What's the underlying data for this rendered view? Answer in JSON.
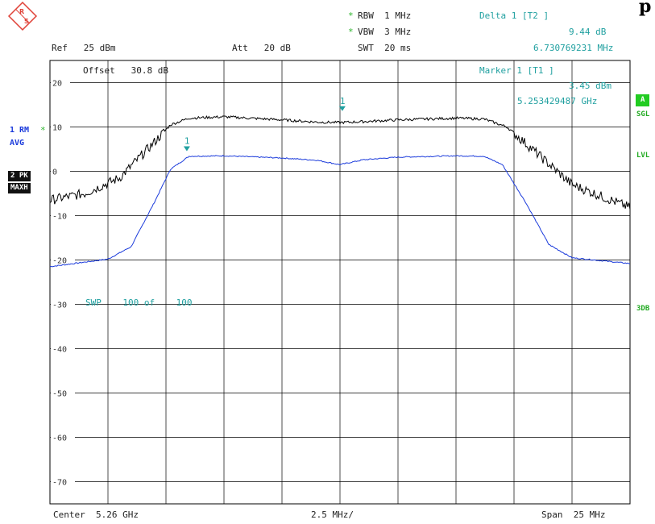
{
  "header": {
    "title_fragment": "p",
    "rbw_star": "*",
    "rbw": "RBW  1 MHz",
    "vbw_star": "*",
    "vbw": "VBW  3 MHz",
    "swt": "SWT  20 ms",
    "ref": "Ref   25 dBm",
    "att": "Att   20 dB",
    "delta_label": "Delta 1 [T2 ]",
    "delta_value": "9.44 dB",
    "delta_freq": "6.730769231 MHz"
  },
  "overlay": {
    "offset": "Offset   30.8 dB",
    "marker_label": "Marker 1 [T1 ]",
    "marker_value": "3.45 dBm",
    "marker_freq": "5.253429487 GHz",
    "swp": "SWP    100 of    100",
    "marker_tag": "1"
  },
  "left_labels": {
    "trace1": "1 RM",
    "trace1_star": "*",
    "avg": "AVG",
    "trace2": "2 PK",
    "maxh": "MAXH"
  },
  "right_labels": {
    "a": "A",
    "sgl": "SGL",
    "lvl": "LVL",
    "db3": "3DB"
  },
  "footer": {
    "center": "Center  5.26 GHz",
    "div": "2.5 MHz/",
    "span": "Span  25 MHz"
  },
  "colors": {
    "trace1": "#1a3adb",
    "trace2": "#000000",
    "marker": "#20a0a0",
    "grid": "#000000"
  },
  "chart_data": {
    "type": "line",
    "xlim": [
      5.2475,
      5.2725
    ],
    "ylim": [
      -75,
      25
    ],
    "yticks": [
      20,
      10,
      0,
      -10,
      -20,
      -30,
      -40,
      -50,
      -60,
      -70
    ],
    "grid": true,
    "series": [
      {
        "id": "trace1",
        "x": [
          5.2475,
          5.25,
          5.251,
          5.252,
          5.2527,
          5.2535,
          5.255,
          5.2575,
          5.259,
          5.26,
          5.261,
          5.2625,
          5.265,
          5.2662,
          5.267,
          5.268,
          5.269,
          5.27,
          5.2725
        ],
        "y": [
          -21.5,
          -19.8,
          -17.0,
          -7.0,
          0.5,
          3.4,
          3.5,
          3.0,
          2.5,
          1.5,
          2.6,
          3.2,
          3.5,
          3.4,
          1.5,
          -7.0,
          -16.5,
          -19.5,
          -20.8
        ]
      },
      {
        "id": "trace2",
        "x": [
          5.2475,
          5.249,
          5.2505,
          5.2518,
          5.2527,
          5.2535,
          5.255,
          5.2575,
          5.259,
          5.26,
          5.261,
          5.2625,
          5.265,
          5.2662,
          5.2672,
          5.2685,
          5.27,
          5.2725
        ],
        "y": [
          -6.5,
          -5.0,
          -1.5,
          5.5,
          10.5,
          12.0,
          12.3,
          11.6,
          11.1,
          11.0,
          11.2,
          11.6,
          12.0,
          11.8,
          10.0,
          4.0,
          -3.0,
          -8.2
        ]
      }
    ],
    "markers": [
      {
        "label": "1",
        "x": 5.2534,
        "y": 3.45
      },
      {
        "label": "1",
        "x": 5.2601,
        "y": 12.5
      }
    ]
  }
}
